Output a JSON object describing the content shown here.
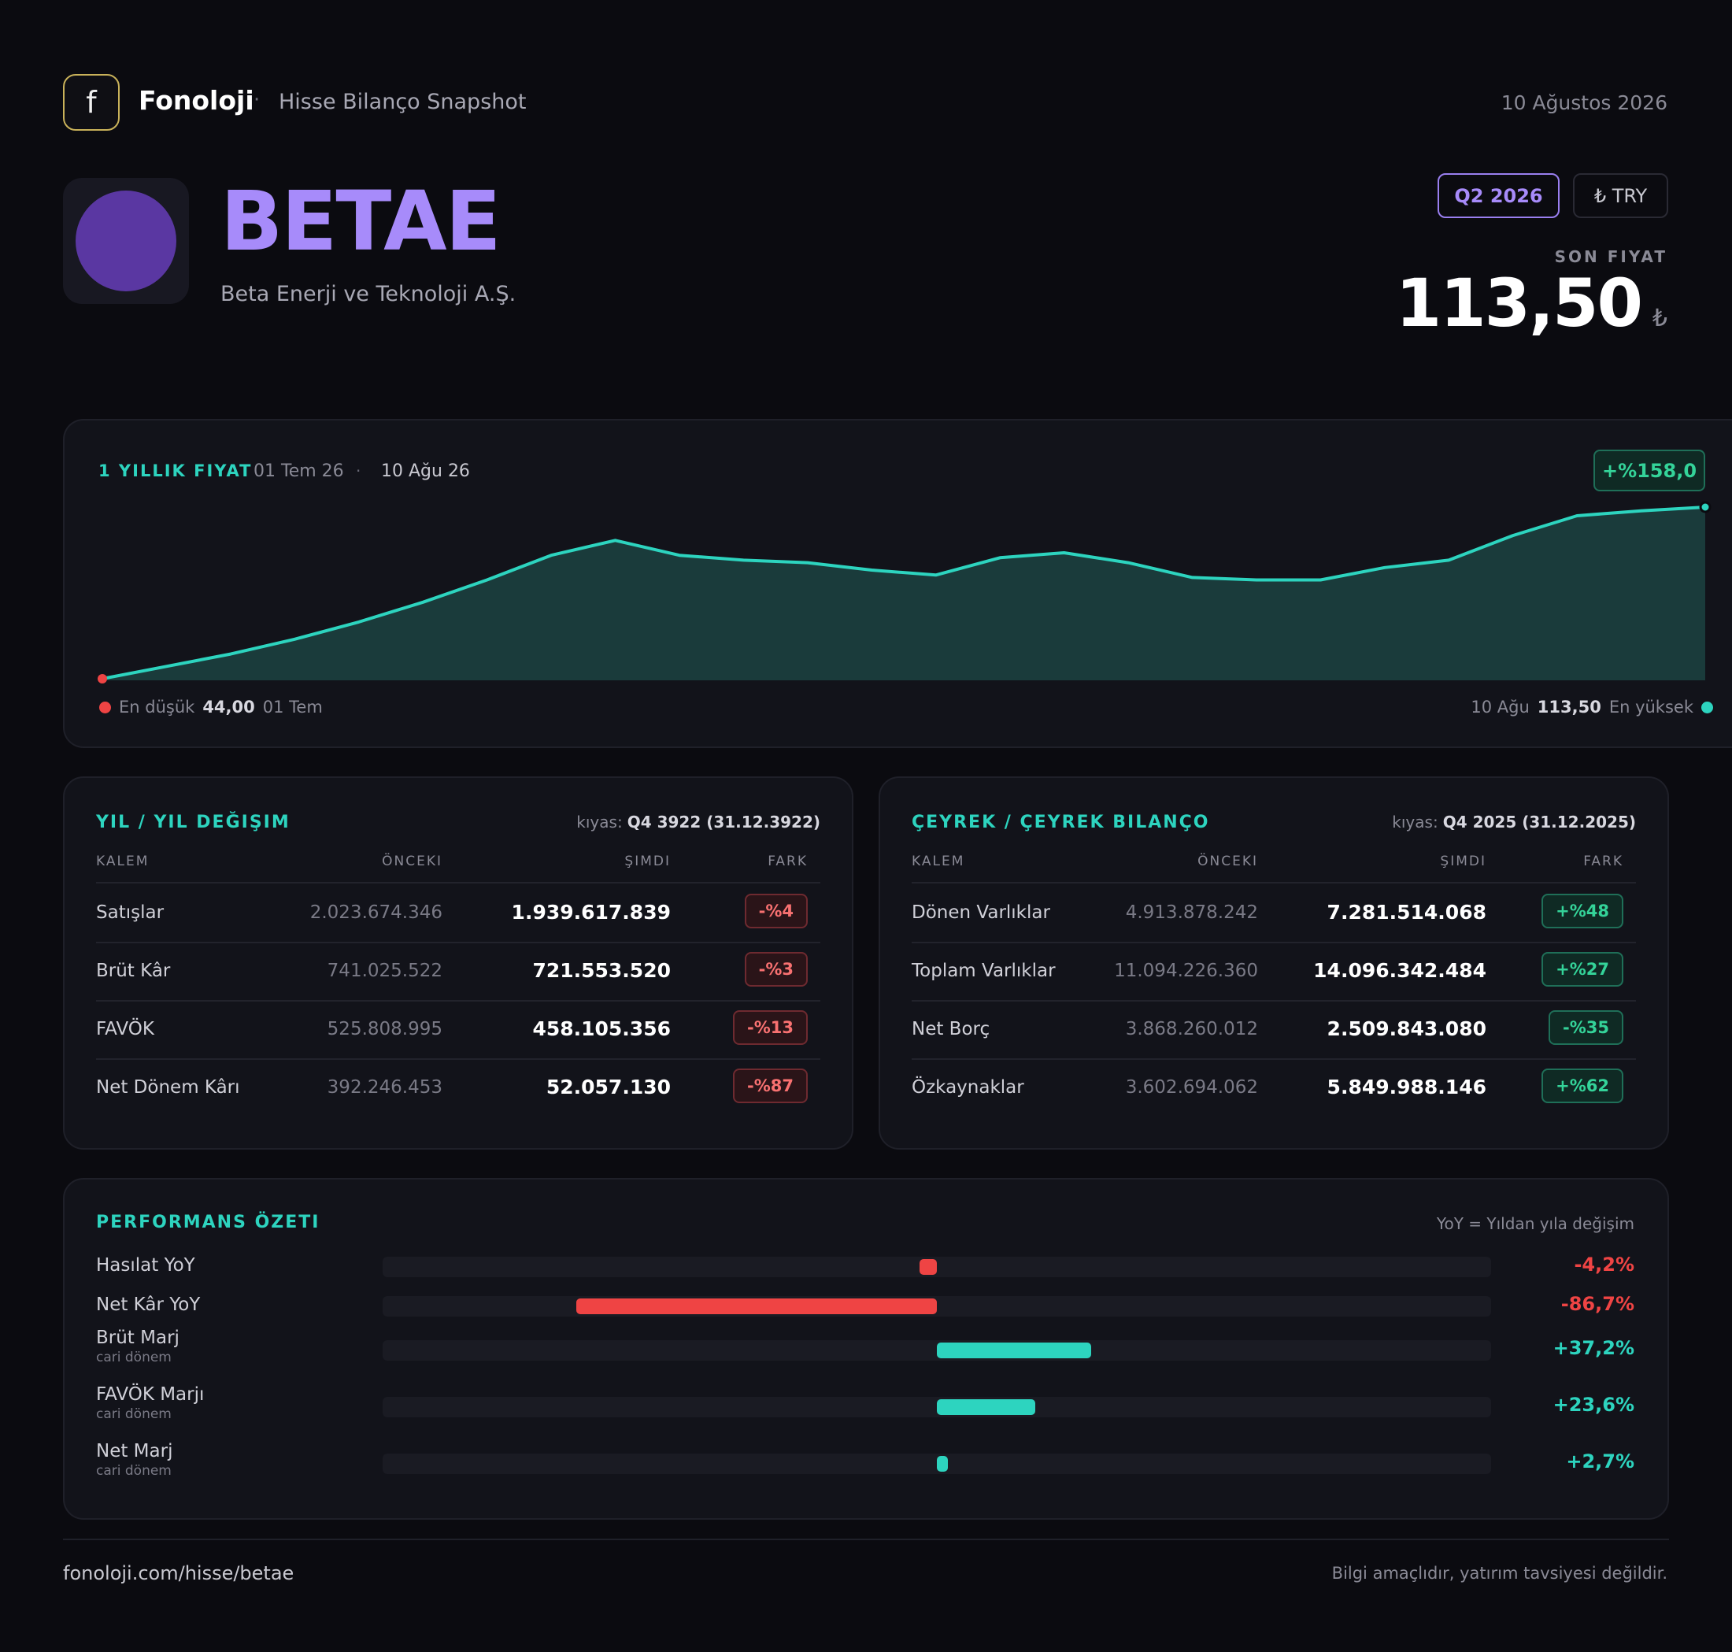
{
  "brand": {
    "logo_letter": "f",
    "name": "Fonoloji",
    "separator": "·",
    "subtitle": "Hisse Bilanço Snapshot"
  },
  "header": {
    "date": "10 Ağustos 2026"
  },
  "company": {
    "ticker": "BETAE",
    "name": "Beta Enerji ve Teknoloji A.Ş.",
    "period": "Q2 2026",
    "currency": "₺ TRY",
    "price_label": "SON FIYAT",
    "price": "113,50",
    "price_currency": "₺"
  },
  "price_chart": {
    "title": "1 YILLIK FIYAT",
    "start_date": "01 Tem 26",
    "separator": "·",
    "end_date": "10 Ağu 26",
    "change": "+%158,0",
    "low_label": "En düşük",
    "low_value": "44,00",
    "low_date": "01 Tem",
    "high_date": "10 Ağu",
    "high_value": "113,50",
    "high_label": "En yüksek",
    "line_color": "#2dd4bf",
    "low_color": "#ef4444",
    "high_color": "#2dd4bf"
  },
  "chart_data": {
    "type": "area",
    "ylim": [
      44,
      113.5
    ],
    "y": [
      44,
      49,
      54,
      60,
      67,
      75,
      84,
      94,
      100,
      94,
      92,
      91,
      88,
      86,
      93,
      95,
      91,
      85,
      84,
      84,
      89,
      92,
      102,
      110,
      112,
      113.5
    ]
  },
  "yoy_table": {
    "title": "YIL / YIL DEĞIŞIM",
    "compare_label": "kıyas:",
    "compare_value": "Q4 3922 (31.12.3922)",
    "columns": [
      "KALEM",
      "ÖNCEKI",
      "ŞIMDI",
      "FARK"
    ],
    "rows": [
      {
        "name": "Satışlar",
        "prev": "2.023.674.346",
        "now": "1.939.617.839",
        "diff": "-%4",
        "dir": "neg"
      },
      {
        "name": "Brüt Kâr",
        "prev": "741.025.522",
        "now": "721.553.520",
        "diff": "-%3",
        "dir": "neg"
      },
      {
        "name": "FAVÖK",
        "prev": "525.808.995",
        "now": "458.105.356",
        "diff": "-%13",
        "dir": "neg"
      },
      {
        "name": "Net Dönem Kârı",
        "prev": "392.246.453",
        "now": "52.057.130",
        "diff": "-%87",
        "dir": "neg"
      }
    ]
  },
  "qoq_table": {
    "title": "ÇEYREK / ÇEYREK BILANÇO",
    "compare_label": "kıyas:",
    "compare_value": "Q4 2025 (31.12.2025)",
    "columns": [
      "KALEM",
      "ÖNCEKI",
      "ŞIMDI",
      "FARK"
    ],
    "rows": [
      {
        "name": "Dönen Varlıklar",
        "prev": "4.913.878.242",
        "now": "7.281.514.068",
        "diff": "+%48",
        "dir": "pos"
      },
      {
        "name": "Toplam Varlıklar",
        "prev": "11.094.226.360",
        "now": "14.096.342.484",
        "diff": "+%27",
        "dir": "pos"
      },
      {
        "name": "Net Borç",
        "prev": "3.868.260.012",
        "now": "2.509.843.080",
        "diff": "-%35",
        "dir": "pos"
      },
      {
        "name": "Özkaynaklar",
        "prev": "3.602.694.062",
        "now": "5.849.988.146",
        "diff": "+%62",
        "dir": "pos"
      }
    ]
  },
  "performance": {
    "title": "PERFORMANS ÖZETI",
    "note": "YoY = Yıldan yıla değişim",
    "neg_color": "#ef4444",
    "pos_color": "#2dd4bf",
    "items": [
      {
        "label": "Hasılat YoY",
        "sub": "",
        "value": "-4,2%",
        "pct": -4.2
      },
      {
        "label": "Net Kâr YoY",
        "sub": "",
        "value": "-86,7%",
        "pct": -86.7
      },
      {
        "label": "Brüt Marj",
        "sub": "cari dönem",
        "value": "+37,2%",
        "pct": 37.2
      },
      {
        "label": "FAVÖK Marjı",
        "sub": "cari dönem",
        "value": "+23,6%",
        "pct": 23.6
      },
      {
        "label": "Net Marj",
        "sub": "cari dönem",
        "value": "+2,7%",
        "pct": 2.7
      }
    ]
  },
  "footer": {
    "url": "fonoloji.com/hisse/betae",
    "disclaimer": "Bilgi amaçlıdır, yatırım tavsiyesi değildir."
  }
}
